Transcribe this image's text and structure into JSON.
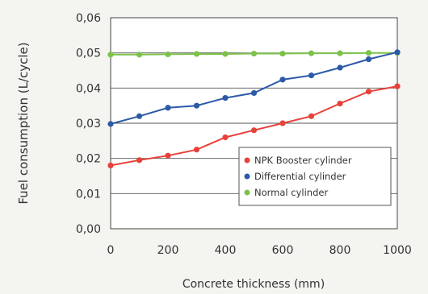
{
  "chart_data": {
    "type": "line",
    "xlabel": "Concrete thickness (mm)",
    "ylabel": "Fuel consumption (L/cycle)",
    "xlim": [
      0,
      1000
    ],
    "ylim": [
      0,
      0.06
    ],
    "x_ticks": [
      "0",
      "200",
      "400",
      "600",
      "800",
      "1000"
    ],
    "y_ticks": [
      "0,00",
      "0,01",
      "0,02",
      "0,03",
      "0,04",
      "0,05",
      "0,06"
    ],
    "grid": "horizontal",
    "legend_position": "lower-right",
    "x": [
      0,
      100,
      200,
      300,
      400,
      500,
      600,
      700,
      800,
      900,
      1000
    ],
    "series": [
      {
        "name": "NPK Booster cylinder",
        "color": "#e8413a",
        "values": [
          0.018,
          0.0195,
          0.0208,
          0.0225,
          0.026,
          0.028,
          0.03,
          0.032,
          0.0356,
          0.039,
          0.0405
        ]
      },
      {
        "name": "Differential cylinder",
        "color": "#2c5aa8",
        "values": [
          0.0298,
          0.032,
          0.0344,
          0.035,
          0.0372,
          0.0386,
          0.0424,
          0.0436,
          0.0458,
          0.0482,
          0.0502
        ]
      },
      {
        "name": "Normal cylinder",
        "color": "#7cc24a",
        "values": [
          0.0495,
          0.0495,
          0.0496,
          0.0497,
          0.0497,
          0.0498,
          0.0498,
          0.0499,
          0.0499,
          0.05,
          0.05
        ]
      }
    ]
  }
}
